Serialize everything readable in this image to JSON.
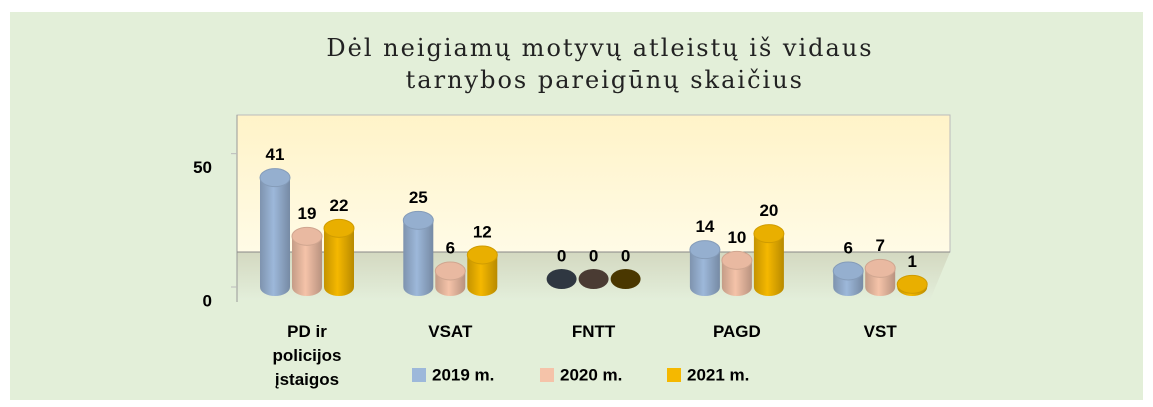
{
  "chart_data": {
    "type": "bar3d",
    "title": "Dėl neigiamų motyvų atleistų iš vidaus tarnybos pareigūnų skaičius",
    "categories": [
      "PD ir policijos įstaigos",
      "VSAT",
      "FNTT",
      "PAGD",
      "VST"
    ],
    "series": [
      {
        "name": "2019 m.",
        "color": "#9db8da",
        "values": [
          41,
          25,
          0,
          14,
          6
        ]
      },
      {
        "name": "2020 m.",
        "color": "#f5c3a9",
        "values": [
          19,
          6,
          0,
          10,
          7
        ]
      },
      {
        "name": "2021 m.",
        "color": "#f5b800",
        "values": [
          22,
          12,
          0,
          20,
          1
        ]
      }
    ],
    "ylim": [
      0,
      60
    ],
    "yticks": [
      0,
      50
    ],
    "legend": "bottom"
  }
}
